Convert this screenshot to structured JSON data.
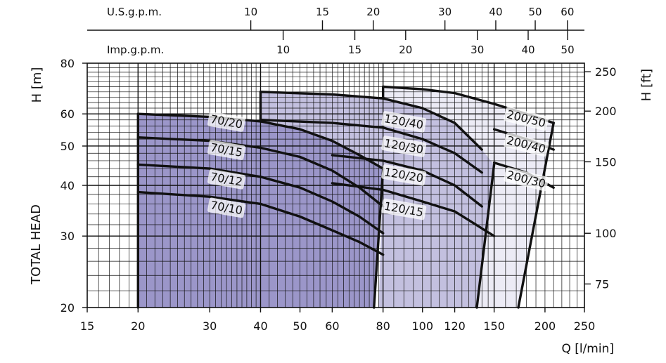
{
  "chart_data": {
    "type": "line",
    "xscale": "log",
    "yscale": "log",
    "xlim": [
      15,
      250
    ],
    "ylim": [
      20,
      80
    ],
    "xlabel": "Q [l/min]",
    "ylabel": "TOTAL HEAD",
    "ylabel_left_unit": "H [m]",
    "ylabel_right_unit": "H [ft]",
    "x_ticks": [
      15,
      20,
      30,
      40,
      50,
      60,
      80,
      100,
      120,
      150,
      200,
      250
    ],
    "x_tick_labels": [
      "15",
      "20",
      "30",
      "40",
      "50",
      "60",
      "80",
      "100",
      "120",
      "150",
      "200",
      "250"
    ],
    "y_ticks": [
      20,
      30,
      40,
      50,
      60,
      80
    ],
    "y_tick_labels": [
      "20",
      "30",
      "40",
      "50",
      "60",
      "80"
    ],
    "y2_ticks_ft": [
      75,
      100,
      150,
      200,
      250
    ],
    "y2_tick_labels": [
      "75",
      "100",
      "150",
      "200",
      "250"
    ],
    "top_axes": [
      {
        "name": "U.S.g.p.m.",
        "ticks": [
          10,
          15,
          20,
          30,
          40,
          50,
          60
        ],
        "tick_labels": [
          "10",
          "15",
          "20",
          "30",
          "40",
          "50",
          "60"
        ],
        "lpm_per_unit": 3.785
      },
      {
        "name": "Imp.g.p.m.",
        "ticks": [
          10,
          15,
          20,
          30,
          40,
          50
        ],
        "tick_labels": [
          "10",
          "15",
          "20",
          "30",
          "40",
          "50"
        ],
        "lpm_per_unit": 4.546
      }
    ],
    "regions": [
      {
        "fill": "#9b96c9",
        "outline": [
          [
            20,
            60
          ],
          [
            30,
            59
          ],
          [
            40,
            57.5
          ],
          [
            50,
            55
          ],
          [
            60,
            51.5
          ],
          [
            70,
            47.5
          ],
          [
            80,
            44
          ],
          [
            76,
            20
          ],
          [
            20,
            20
          ]
        ]
      },
      {
        "fill": "#c3c0df",
        "outline": [
          [
            40,
            68
          ],
          [
            60,
            67
          ],
          [
            80,
            65.5
          ],
          [
            100,
            62
          ],
          [
            120,
            57
          ],
          [
            140,
            49
          ],
          [
            150,
            45
          ],
          [
            136,
            20
          ],
          [
            78,
            20
          ],
          [
            80,
            44
          ],
          [
            70,
            47.5
          ],
          [
            60,
            51.5
          ],
          [
            50,
            55
          ],
          [
            40,
            57.5
          ]
        ]
      },
      {
        "fill": "#ecebf5",
        "outline": [
          [
            80,
            70
          ],
          [
            100,
            69
          ],
          [
            120,
            67.5
          ],
          [
            150,
            63.5
          ],
          [
            180,
            60
          ],
          [
            210,
            57
          ],
          [
            172,
            20
          ],
          [
            136,
            20
          ],
          [
            150,
            45
          ],
          [
            140,
            49
          ],
          [
            120,
            57
          ],
          [
            100,
            62
          ],
          [
            80,
            65.5
          ]
        ]
      }
    ],
    "series": [
      {
        "name": "70/20",
        "x": [
          20,
          30,
          40,
          50,
          60,
          70,
          80
        ],
        "y": [
          60,
          59,
          57.5,
          55,
          51.5,
          47.5,
          44
        ],
        "label_at": [
          33,
          57.5
        ]
      },
      {
        "name": "70/15",
        "x": [
          20,
          30,
          40,
          50,
          60,
          70,
          80
        ],
        "y": [
          52.5,
          51.5,
          49.5,
          47,
          43.5,
          39.5,
          35.5
        ],
        "label_at": [
          33,
          49
        ]
      },
      {
        "name": "70/12",
        "x": [
          20,
          30,
          40,
          50,
          60,
          70,
          80
        ],
        "y": [
          45,
          44,
          42,
          39.5,
          36.5,
          33.5,
          30.5
        ],
        "label_at": [
          33,
          41.5
        ]
      },
      {
        "name": "70/10",
        "x": [
          20,
          30,
          40,
          50,
          60,
          70,
          80
        ],
        "y": [
          38.5,
          37.5,
          36,
          33.5,
          31,
          29,
          27
        ],
        "label_at": [
          33,
          35.3
        ]
      },
      {
        "name": "120/40",
        "x": [
          40,
          60,
          80,
          100,
          120,
          140
        ],
        "y": [
          68,
          67,
          65.5,
          62,
          57,
          49
        ],
        "label_at": [
          90,
          57.5
        ]
      },
      {
        "name": "120/30",
        "x": [
          40,
          60,
          80,
          100,
          120,
          140
        ],
        "y": [
          58,
          57,
          55.5,
          52,
          48,
          43
        ],
        "label_at": [
          90,
          50
        ]
      },
      {
        "name": "120/20",
        "x": [
          60,
          80,
          100,
          120,
          140
        ],
        "y": [
          47.5,
          46,
          43.5,
          40,
          35.5
        ],
        "label_at": [
          90,
          42.5
        ]
      },
      {
        "name": "120/15",
        "x": [
          60,
          80,
          100,
          120,
          150
        ],
        "y": [
          40.5,
          39,
          36.5,
          34.5,
          30
        ],
        "label_at": [
          90,
          35
        ]
      },
      {
        "name": "200/50",
        "x": [
          80,
          100,
          120,
          150,
          180,
          210
        ],
        "y": [
          70,
          69,
          67.5,
          63.5,
          60,
          57
        ],
        "label_at": [
          180,
          58.5
        ]
      },
      {
        "name": "200/40",
        "x": [
          150,
          180,
          210
        ],
        "y": [
          55,
          52,
          49
        ],
        "label_at": [
          180,
          50.5
        ]
      },
      {
        "name": "200/30",
        "x": [
          150,
          180,
          210
        ],
        "y": [
          45.5,
          43,
          39.5
        ],
        "label_at": [
          180,
          41.5
        ]
      }
    ],
    "limit_lines": [
      {
        "x": [
          80,
          76
        ],
        "y": [
          44,
          20
        ]
      },
      {
        "x": [
          150,
          136
        ],
        "y": [
          45,
          20
        ]
      },
      {
        "x": [
          210,
          172
        ],
        "y": [
          57,
          20
        ]
      }
    ],
    "legend": "none",
    "grid": true
  }
}
